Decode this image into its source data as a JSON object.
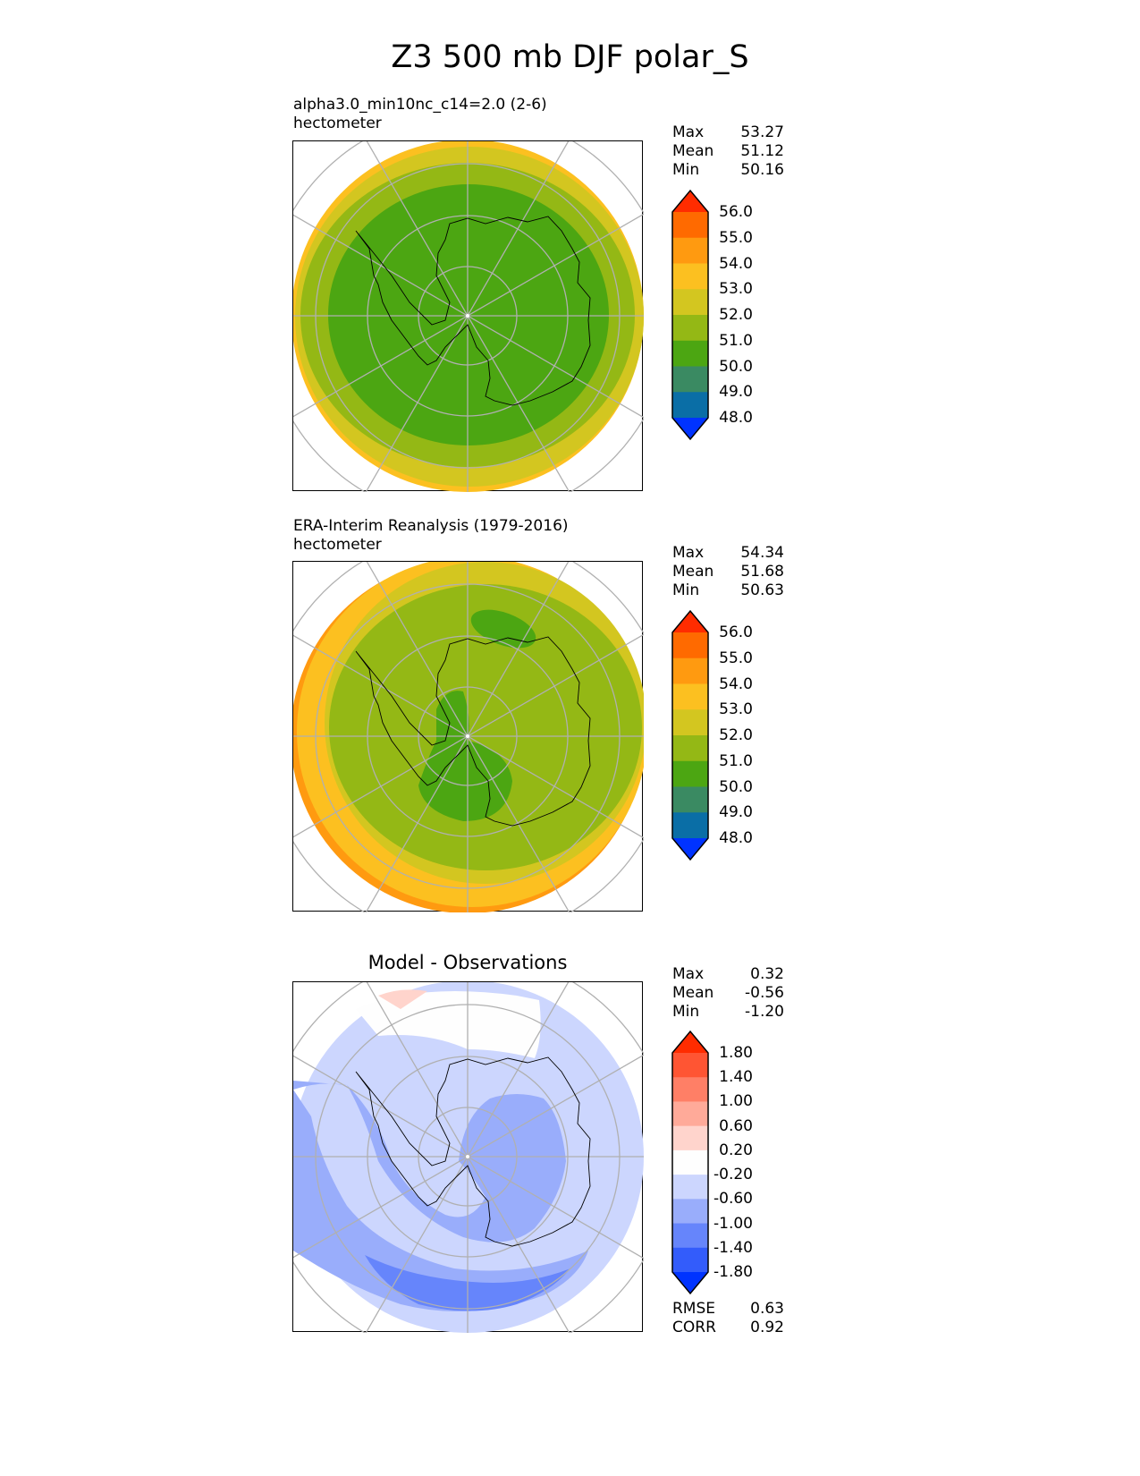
{
  "title": "Z3 500 mb DJF polar_S",
  "panels": [
    {
      "subtitle": "alpha3.0_min10nc_c14=2.0 (2-6)",
      "units": "hectometer",
      "stats": {
        "max_label": "Max",
        "max": "53.27",
        "mean_label": "Mean",
        "mean": "51.12",
        "min_label": "Min",
        "min": "50.16"
      },
      "colorbar": {
        "levels": [
          "56.0",
          "55.0",
          "54.0",
          "53.0",
          "52.0",
          "51.0",
          "50.0",
          "49.0",
          "48.0"
        ],
        "colors": [
          "#ff2c00",
          "#ff6a00",
          "#ff9a10",
          "#fcc020",
          "#d3c620",
          "#94b815",
          "#4ca612",
          "#3a8a62",
          "#0a6ea6",
          "#0033ff"
        ]
      }
    },
    {
      "subtitle": "ERA-Interim Reanalysis (1979-2016)",
      "units": "hectometer",
      "stats": {
        "max_label": "Max",
        "max": "54.34",
        "mean_label": "Mean",
        "mean": "51.68",
        "min_label": "Min",
        "min": "50.63"
      },
      "colorbar": {
        "levels": [
          "56.0",
          "55.0",
          "54.0",
          "53.0",
          "52.0",
          "51.0",
          "50.0",
          "49.0",
          "48.0"
        ],
        "colors": [
          "#ff2c00",
          "#ff6a00",
          "#ff9a10",
          "#fcc020",
          "#d3c620",
          "#94b815",
          "#4ca612",
          "#3a8a62",
          "#0a6ea6",
          "#0033ff"
        ]
      }
    },
    {
      "subtitle": "Model - Observations",
      "units": "",
      "stats": {
        "max_label": "Max",
        "max": "0.32",
        "mean_label": "Mean",
        "mean": "-0.56",
        "min_label": "Min",
        "min": "-1.20"
      },
      "colorbar": {
        "levels": [
          "1.80",
          "1.40",
          "1.00",
          "0.60",
          "0.20",
          "-0.20",
          "-0.60",
          "-1.00",
          "-1.40",
          "-1.80"
        ],
        "colors": [
          "#ff2c00",
          "#ff5533",
          "#ff7f66",
          "#ffaa99",
          "#ffd4cc",
          "#fefefe",
          "#ccd6fe",
          "#99adfb",
          "#6685fb",
          "#335cfb",
          "#0033ff"
        ]
      },
      "metrics": {
        "rmse_label": "RMSE",
        "rmse": "0.63",
        "corr_label": "CORR",
        "corr": "0.92"
      }
    }
  ]
}
